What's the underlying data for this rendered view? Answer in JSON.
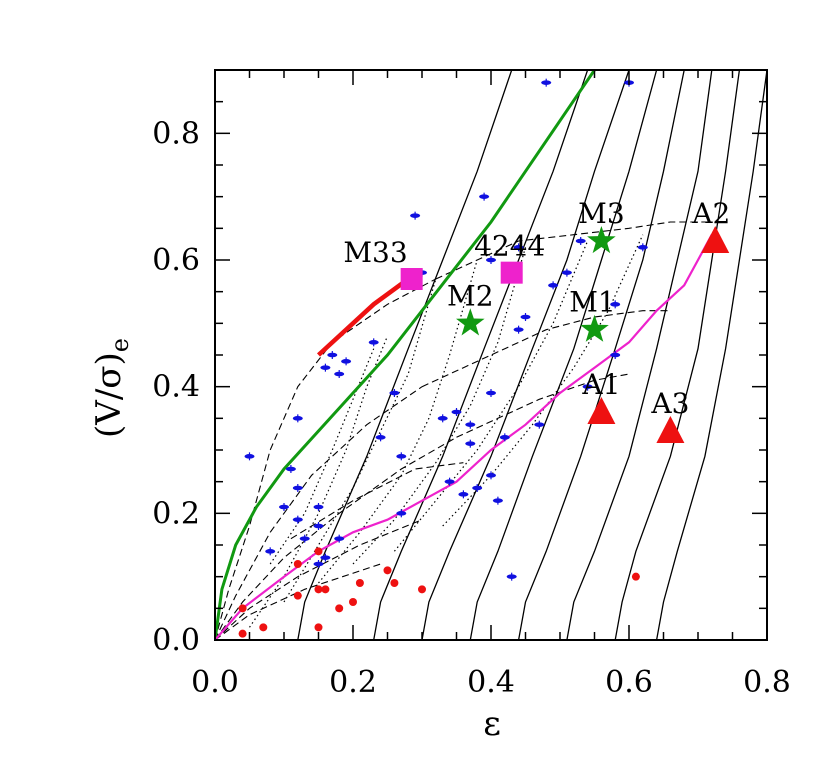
{
  "chart_data": {
    "type": "scatter",
    "xlabel": "ε",
    "ylabel": "(V/σ)",
    "ylabel_sub": "e",
    "xlim": [
      0.0,
      0.8
    ],
    "ylim": [
      0.0,
      0.9
    ],
    "x_ticks": [
      "0.0",
      "0.2",
      "0.4",
      "0.6",
      "0.8"
    ],
    "y_ticks": [
      "0.0",
      "0.2",
      "0.4",
      "0.6",
      "0.8"
    ],
    "x_tick_values": [
      0.0,
      0.2,
      0.4,
      0.6,
      0.8
    ],
    "y_tick_values": [
      0.0,
      0.2,
      0.4,
      0.6,
      0.8
    ],
    "colors": {
      "blue": "#1010e0",
      "red": "#ee1111",
      "green": "#119911",
      "magenta": "#ee22cc",
      "thick_red": "#ee1111",
      "black": "#000000"
    },
    "blue_points": [
      [
        0.05,
        0.29
      ],
      [
        0.08,
        0.14
      ],
      [
        0.11,
        0.27
      ],
      [
        0.12,
        0.24
      ],
      [
        0.12,
        0.35
      ],
      [
        0.1,
        0.21
      ],
      [
        0.12,
        0.19
      ],
      [
        0.13,
        0.16
      ],
      [
        0.15,
        0.21
      ],
      [
        0.15,
        0.18
      ],
      [
        0.16,
        0.43
      ],
      [
        0.17,
        0.45
      ],
      [
        0.18,
        0.42
      ],
      [
        0.19,
        0.44
      ],
      [
        0.18,
        0.16
      ],
      [
        0.15,
        0.12
      ],
      [
        0.23,
        0.47
      ],
      [
        0.24,
        0.32
      ],
      [
        0.26,
        0.39
      ],
      [
        0.27,
        0.29
      ],
      [
        0.29,
        0.67
      ],
      [
        0.3,
        0.58
      ],
      [
        0.33,
        0.35
      ],
      [
        0.34,
        0.25
      ],
      [
        0.35,
        0.36
      ],
      [
        0.37,
        0.31
      ],
      [
        0.37,
        0.34
      ],
      [
        0.38,
        0.24
      ],
      [
        0.39,
        0.7
      ],
      [
        0.4,
        0.39
      ],
      [
        0.4,
        0.26
      ],
      [
        0.41,
        0.22
      ],
      [
        0.42,
        0.32
      ],
      [
        0.43,
        0.1
      ],
      [
        0.44,
        0.49
      ],
      [
        0.45,
        0.51
      ],
      [
        0.47,
        0.34
      ],
      [
        0.48,
        0.88
      ],
      [
        0.49,
        0.56
      ],
      [
        0.51,
        0.58
      ],
      [
        0.53,
        0.63
      ],
      [
        0.54,
        0.4
      ],
      [
        0.58,
        0.53
      ],
      [
        0.58,
        0.45
      ],
      [
        0.6,
        0.88
      ],
      [
        0.62,
        0.62
      ],
      [
        0.44,
        0.62
      ],
      [
        0.36,
        0.23
      ],
      [
        0.16,
        0.13
      ],
      [
        0.27,
        0.2
      ],
      [
        0.4,
        0.6
      ]
    ],
    "red_points": [
      [
        0.04,
        0.01
      ],
      [
        0.04,
        0.05
      ],
      [
        0.07,
        0.02
      ],
      [
        0.12,
        0.12
      ],
      [
        0.12,
        0.07
      ],
      [
        0.15,
        0.14
      ],
      [
        0.15,
        0.08
      ],
      [
        0.16,
        0.08
      ],
      [
        0.15,
        0.02
      ],
      [
        0.18,
        0.05
      ],
      [
        0.2,
        0.06
      ],
      [
        0.21,
        0.09
      ],
      [
        0.25,
        0.11
      ],
      [
        0.26,
        0.09
      ],
      [
        0.3,
        0.08
      ],
      [
        0.61,
        0.1
      ]
    ],
    "galaxies": [
      {
        "name": "M33",
        "marker": "square",
        "color": "#ee22cc",
        "x": 0.285,
        "y": 0.57
      },
      {
        "name": "4244",
        "marker": "square",
        "color": "#ee22cc",
        "x": 0.43,
        "y": 0.58
      },
      {
        "name": "M2",
        "marker": "star",
        "color": "#119911",
        "x": 0.37,
        "y": 0.5
      },
      {
        "name": "M3",
        "marker": "star",
        "color": "#119911",
        "x": 0.56,
        "y": 0.63
      },
      {
        "name": "M1",
        "marker": "star",
        "color": "#119911",
        "x": 0.55,
        "y": 0.49
      },
      {
        "name": "A2",
        "marker": "triangle",
        "color": "#ee1111",
        "x": 0.725,
        "y": 0.63
      },
      {
        "name": "A1",
        "marker": "triangle",
        "color": "#ee1111",
        "x": 0.56,
        "y": 0.36
      },
      {
        "name": "A3",
        "marker": "triangle",
        "color": "#ee1111",
        "x": 0.66,
        "y": 0.33
      }
    ],
    "green_curve": [
      [
        0.0,
        0.0
      ],
      [
        0.01,
        0.08
      ],
      [
        0.03,
        0.15
      ],
      [
        0.06,
        0.21
      ],
      [
        0.1,
        0.27
      ],
      [
        0.15,
        0.33
      ],
      [
        0.2,
        0.39
      ],
      [
        0.25,
        0.45
      ],
      [
        0.3,
        0.52
      ],
      [
        0.35,
        0.59
      ],
      [
        0.4,
        0.66
      ],
      [
        0.45,
        0.74
      ],
      [
        0.5,
        0.82
      ],
      [
        0.55,
        0.9
      ]
    ],
    "magenta_curve": [
      [
        0.0,
        0.0
      ],
      [
        0.04,
        0.05
      ],
      [
        0.1,
        0.1
      ],
      [
        0.15,
        0.14
      ],
      [
        0.2,
        0.17
      ],
      [
        0.25,
        0.19
      ],
      [
        0.3,
        0.22
      ],
      [
        0.35,
        0.25
      ],
      [
        0.4,
        0.3
      ],
      [
        0.45,
        0.34
      ],
      [
        0.5,
        0.39
      ],
      [
        0.55,
        0.43
      ],
      [
        0.6,
        0.47
      ],
      [
        0.64,
        0.52
      ],
      [
        0.68,
        0.56
      ],
      [
        0.72,
        0.64
      ]
    ],
    "thick_red_curve": [
      [
        0.15,
        0.45
      ],
      [
        0.19,
        0.49
      ],
      [
        0.23,
        0.53
      ],
      [
        0.28,
        0.57
      ]
    ],
    "black_curves": [
      [
        [
          0.12,
          0.0
        ],
        [
          0.13,
          0.06
        ],
        [
          0.16,
          0.14
        ],
        [
          0.22,
          0.29
        ],
        [
          0.28,
          0.46
        ],
        [
          0.33,
          0.6
        ],
        [
          0.38,
          0.74
        ],
        [
          0.43,
          0.9
        ]
      ],
      [
        [
          0.23,
          0.0
        ],
        [
          0.24,
          0.06
        ],
        [
          0.27,
          0.14
        ],
        [
          0.33,
          0.29
        ],
        [
          0.39,
          0.46
        ],
        [
          0.44,
          0.6
        ],
        [
          0.49,
          0.74
        ],
        [
          0.54,
          0.9
        ]
      ],
      [
        [
          0.3,
          0.0
        ],
        [
          0.31,
          0.06
        ],
        [
          0.34,
          0.14
        ],
        [
          0.4,
          0.29
        ],
        [
          0.46,
          0.46
        ],
        [
          0.51,
          0.6
        ],
        [
          0.55,
          0.74
        ],
        [
          0.6,
          0.9
        ]
      ],
      [
        [
          0.37,
          0.0
        ],
        [
          0.38,
          0.06
        ],
        [
          0.41,
          0.14
        ],
        [
          0.46,
          0.29
        ],
        [
          0.52,
          0.46
        ],
        [
          0.56,
          0.6
        ],
        [
          0.6,
          0.74
        ],
        [
          0.64,
          0.9
        ]
      ],
      [
        [
          0.44,
          0.0
        ],
        [
          0.45,
          0.06
        ],
        [
          0.48,
          0.14
        ],
        [
          0.53,
          0.29
        ],
        [
          0.58,
          0.46
        ],
        [
          0.62,
          0.6
        ],
        [
          0.65,
          0.74
        ],
        [
          0.68,
          0.9
        ]
      ],
      [
        [
          0.51,
          0.0
        ],
        [
          0.52,
          0.06
        ],
        [
          0.55,
          0.14
        ],
        [
          0.6,
          0.29
        ],
        [
          0.64,
          0.46
        ],
        [
          0.67,
          0.6
        ],
        [
          0.7,
          0.74
        ],
        [
          0.72,
          0.9
        ]
      ],
      [
        [
          0.58,
          0.0
        ],
        [
          0.59,
          0.06
        ],
        [
          0.61,
          0.14
        ],
        [
          0.66,
          0.29
        ],
        [
          0.7,
          0.46
        ],
        [
          0.72,
          0.6
        ],
        [
          0.74,
          0.74
        ],
        [
          0.76,
          0.9
        ]
      ],
      [
        [
          0.64,
          0.0
        ],
        [
          0.65,
          0.06
        ],
        [
          0.67,
          0.14
        ],
        [
          0.71,
          0.29
        ],
        [
          0.74,
          0.46
        ],
        [
          0.76,
          0.6
        ],
        [
          0.78,
          0.74
        ],
        [
          0.8,
          0.9
        ]
      ]
    ],
    "dashed_curves": [
      [
        [
          0.0,
          0.0
        ],
        [
          0.02,
          0.08
        ],
        [
          0.05,
          0.18
        ],
        [
          0.08,
          0.3
        ],
        [
          0.12,
          0.4
        ],
        [
          0.17,
          0.47
        ],
        [
          0.25,
          0.53
        ],
        [
          0.32,
          0.57
        ]
      ],
      [
        [
          0.0,
          0.0
        ],
        [
          0.03,
          0.07
        ],
        [
          0.08,
          0.17
        ],
        [
          0.14,
          0.26
        ],
        [
          0.22,
          0.34
        ],
        [
          0.3,
          0.4
        ]
      ],
      [
        [
          0.0,
          0.0
        ],
        [
          0.04,
          0.06
        ],
        [
          0.1,
          0.13
        ],
        [
          0.18,
          0.2
        ],
        [
          0.27,
          0.27
        ],
        [
          0.35,
          0.32
        ]
      ],
      [
        [
          0.0,
          0.0
        ],
        [
          0.05,
          0.05
        ],
        [
          0.12,
          0.1
        ],
        [
          0.21,
          0.15
        ],
        [
          0.3,
          0.19
        ]
      ],
      [
        [
          0.0,
          0.0
        ],
        [
          0.05,
          0.04
        ],
        [
          0.13,
          0.08
        ],
        [
          0.24,
          0.12
        ]
      ],
      [
        [
          0.32,
          0.57
        ],
        [
          0.38,
          0.6
        ],
        [
          0.44,
          0.63
        ],
        [
          0.52,
          0.64
        ],
        [
          0.6,
          0.65
        ],
        [
          0.66,
          0.66
        ],
        [
          0.72,
          0.66
        ]
      ],
      [
        [
          0.3,
          0.4
        ],
        [
          0.36,
          0.43
        ],
        [
          0.42,
          0.46
        ],
        [
          0.48,
          0.49
        ],
        [
          0.55,
          0.51
        ],
        [
          0.62,
          0.52
        ],
        [
          0.66,
          0.52
        ]
      ],
      [
        [
          0.35,
          0.32
        ],
        [
          0.41,
          0.35
        ],
        [
          0.47,
          0.38
        ],
        [
          0.55,
          0.41
        ],
        [
          0.6,
          0.42
        ]
      ],
      [
        [
          0.11,
          0.16
        ],
        [
          0.2,
          0.22
        ],
        [
          0.29,
          0.27
        ],
        [
          0.36,
          0.28
        ]
      ]
    ],
    "dotted_curves": [
      [
        [
          0.05,
          0.02
        ],
        [
          0.1,
          0.1
        ],
        [
          0.15,
          0.2
        ],
        [
          0.19,
          0.3
        ],
        [
          0.22,
          0.4
        ],
        [
          0.25,
          0.48
        ]
      ],
      [
        [
          0.1,
          0.06
        ],
        [
          0.15,
          0.15
        ],
        [
          0.2,
          0.24
        ],
        [
          0.24,
          0.33
        ],
        [
          0.28,
          0.42
        ],
        [
          0.32,
          0.57
        ]
      ],
      [
        [
          0.15,
          0.09
        ],
        [
          0.21,
          0.17
        ],
        [
          0.27,
          0.26
        ],
        [
          0.31,
          0.35
        ],
        [
          0.34,
          0.45
        ],
        [
          0.38,
          0.6
        ]
      ],
      [
        [
          0.2,
          0.12
        ],
        [
          0.26,
          0.19
        ],
        [
          0.32,
          0.28
        ],
        [
          0.37,
          0.37
        ],
        [
          0.41,
          0.47
        ],
        [
          0.45,
          0.62
        ]
      ],
      [
        [
          0.26,
          0.14
        ],
        [
          0.32,
          0.22
        ],
        [
          0.38,
          0.3
        ],
        [
          0.44,
          0.4
        ],
        [
          0.49,
          0.5
        ],
        [
          0.54,
          0.63
        ]
      ],
      [
        [
          0.33,
          0.18
        ],
        [
          0.4,
          0.26
        ],
        [
          0.46,
          0.34
        ],
        [
          0.52,
          0.43
        ],
        [
          0.57,
          0.52
        ],
        [
          0.62,
          0.64
        ]
      ],
      [
        [
          0.08,
          0.12
        ],
        [
          0.13,
          0.2
        ],
        [
          0.17,
          0.3
        ],
        [
          0.2,
          0.38
        ],
        [
          0.23,
          0.46
        ]
      ]
    ]
  }
}
